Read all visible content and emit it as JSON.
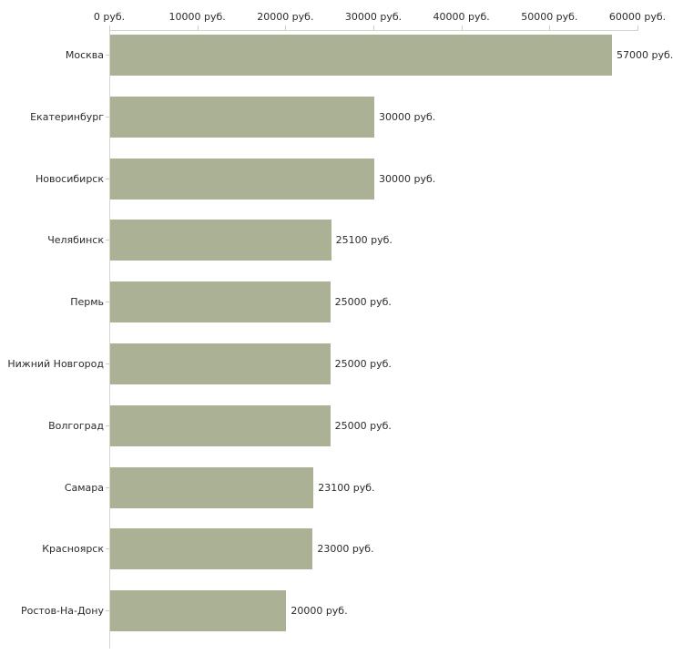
{
  "chart_data": {
    "type": "bar",
    "orientation": "horizontal",
    "title": "",
    "xlabel": "",
    "ylabel": "",
    "categories": [
      "Москва",
      "Екатеринбург",
      "Новосибирск",
      "Челябинск",
      "Пермь",
      "Нижний Новгород",
      "Волгоград",
      "Самара",
      "Красноярск",
      "Ростов-На-Дону"
    ],
    "values": [
      57000,
      30000,
      30000,
      25100,
      25000,
      25000,
      25000,
      23100,
      23000,
      20000
    ],
    "value_labels": [
      "57000 руб.",
      "30000 руб.",
      "30000 руб.",
      "25100 руб.",
      "25000 руб.",
      "25000 руб.",
      "25000 руб.",
      "23100 руб.",
      "23000 руб.",
      "20000 руб."
    ],
    "x_tick_labels": [
      "0 руб.",
      "10000 руб.",
      "20000 руб.",
      "30000 руб.",
      "40000 руб.",
      "50000 руб.",
      "60000 руб."
    ],
    "xlim": [
      0,
      60000
    ],
    "grid": false,
    "legend": false,
    "colors": {
      "bar": "#abb195",
      "axis_line": "#d6d5cb",
      "tick_mark": "#ccd0ac",
      "text": "#2b2b2b",
      "background": "#ffffff"
    }
  }
}
